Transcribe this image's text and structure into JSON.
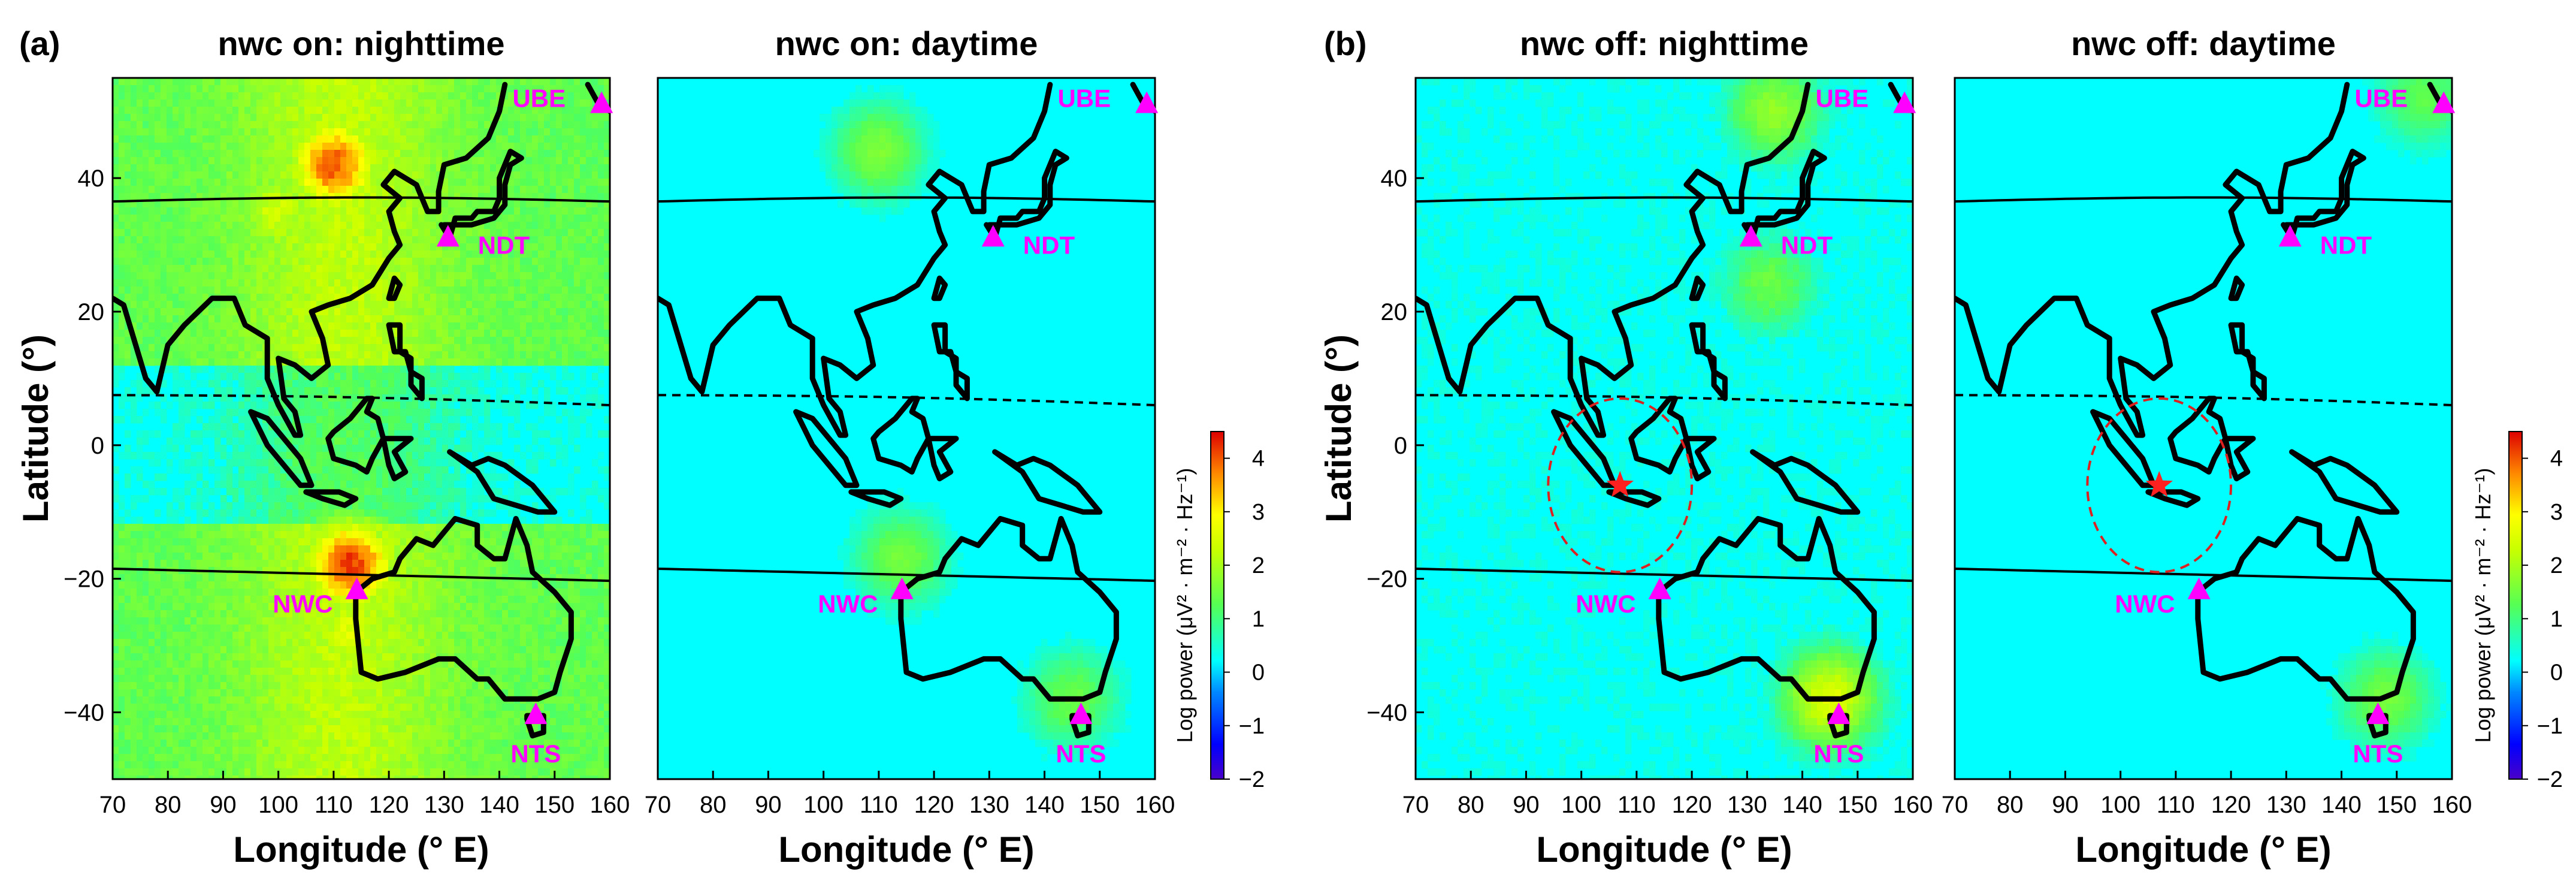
{
  "figure": {
    "part_labels": [
      "(a)",
      "(b)"
    ],
    "colormap_name": "jet",
    "ocean_color": "#00ffff",
    "coast_color": "#000000",
    "station_color": "#ff00ff",
    "nwc_star_color": "#ff2020",
    "ring_color": "#dd2020"
  },
  "chart_data": [
    {
      "type": "heatmap",
      "part": "(a)",
      "title": "nwc on: nighttime",
      "xlabel": "Longitude (° E)",
      "ylabel": "Latitude (°)",
      "xlim": [
        70,
        160
      ],
      "ylim": [
        -50,
        55
      ],
      "xticks": [
        "70",
        "80",
        "90",
        "100",
        "110",
        "120",
        "130",
        "140",
        "150",
        "160"
      ],
      "yticks": [
        "-40",
        "-20",
        "0",
        "20",
        "40"
      ],
      "show_ylabel": true,
      "nwc_transmitter_on": true,
      "intensity": 1.0,
      "hotspots": [
        {
          "lon": 110,
          "lat": 42,
          "log_power": 4.0
        },
        {
          "lon": 113,
          "lat": -18,
          "log_power": 4.2
        },
        {
          "lon": 113,
          "lat": -28,
          "log_power": 2.6
        },
        {
          "lon": 100,
          "lat": 35,
          "log_power": 2.4
        }
      ],
      "background_log_power": 1.3,
      "stations": [
        {
          "name": "UBE",
          "lon": 158.5,
          "lat": 51
        },
        {
          "name": "NDT",
          "lon": 130.7,
          "lat": 31
        },
        {
          "name": "NWC",
          "lon": 114.2,
          "lat": -21.8
        },
        {
          "name": "NTS",
          "lon": 146.6,
          "lat": -40.5
        }
      ],
      "show_star": false
    },
    {
      "type": "heatmap",
      "part": "(a)",
      "title": "nwc on: daytime",
      "xlabel": "Longitude (° E)",
      "ylabel": "",
      "xlim": [
        70,
        160
      ],
      "ylim": [
        -50,
        55
      ],
      "xticks": [
        "70",
        "80",
        "90",
        "100",
        "110",
        "120",
        "130",
        "140",
        "150",
        "160"
      ],
      "yticks": [],
      "show_ylabel": false,
      "nwc_transmitter_on": true,
      "intensity": 0.35,
      "hotspots": [
        {
          "lon": 110,
          "lat": 44,
          "log_power": 1.6
        },
        {
          "lon": 114,
          "lat": -17,
          "log_power": 1.5
        },
        {
          "lon": 145,
          "lat": -38,
          "log_power": 1.4
        }
      ],
      "background_log_power": 0.1,
      "stations": [
        {
          "name": "UBE",
          "lon": 158.5,
          "lat": 51
        },
        {
          "name": "NDT",
          "lon": 130.7,
          "lat": 31
        },
        {
          "name": "NWC",
          "lon": 114.2,
          "lat": -21.8
        },
        {
          "name": "NTS",
          "lon": 146.6,
          "lat": -40.5
        }
      ],
      "show_star": false,
      "colorbar": {
        "label": "Log power (μV² · m⁻² · Hz⁻¹)",
        "min": -2,
        "max": 4.5,
        "ticks": [
          "-2",
          "-1",
          "0",
          "1",
          "2",
          "3",
          "4"
        ]
      }
    },
    {
      "type": "heatmap",
      "part": "(b)",
      "title": "nwc off: nighttime",
      "xlabel": "Longitude (° E)",
      "ylabel": "Latitude (°)",
      "xlim": [
        70,
        160
      ],
      "ylim": [
        -50,
        55
      ],
      "xticks": [
        "70",
        "80",
        "90",
        "100",
        "110",
        "120",
        "130",
        "140",
        "150",
        "160"
      ],
      "yticks": [
        "-40",
        "-20",
        "0",
        "20",
        "40"
      ],
      "show_ylabel": true,
      "nwc_transmitter_on": false,
      "intensity": 0.55,
      "hotspots": [
        {
          "lon": 145,
          "lat": -38,
          "log_power": 2.6
        },
        {
          "lon": 135,
          "lat": 50,
          "log_power": 1.8
        },
        {
          "lon": 134,
          "lat": 24,
          "log_power": 1.4
        }
      ],
      "background_log_power": 0.3,
      "stations": [
        {
          "name": "UBE",
          "lon": 158.5,
          "lat": 51
        },
        {
          "name": "NDT",
          "lon": 130.7,
          "lat": 31
        },
        {
          "name": "NWC",
          "lon": 114.2,
          "lat": -21.8
        },
        {
          "name": "NTS",
          "lon": 146.6,
          "lat": -40.5
        }
      ],
      "show_star": true,
      "star": {
        "lon": 107,
        "lat": -6
      },
      "ring_radius_deg": 13
    },
    {
      "type": "heatmap",
      "part": "(b)",
      "title": "nwc off: daytime",
      "xlabel": "Longitude (° E)",
      "ylabel": "",
      "xlim": [
        70,
        160
      ],
      "ylim": [
        -50,
        55
      ],
      "xticks": [
        "70",
        "80",
        "90",
        "100",
        "110",
        "120",
        "130",
        "140",
        "150",
        "160"
      ],
      "yticks": [],
      "show_ylabel": false,
      "nwc_transmitter_on": false,
      "intensity": 0.3,
      "hotspots": [
        {
          "lon": 148,
          "lat": -38,
          "log_power": 1.5
        },
        {
          "lon": 155,
          "lat": 52,
          "log_power": 1.3
        }
      ],
      "background_log_power": 0.05,
      "stations": [
        {
          "name": "UBE",
          "lon": 158.5,
          "lat": 51
        },
        {
          "name": "NDT",
          "lon": 130.7,
          "lat": 31
        },
        {
          "name": "NWC",
          "lon": 114.2,
          "lat": -21.8
        },
        {
          "name": "NTS",
          "lon": 146.6,
          "lat": -40.5
        }
      ],
      "show_star": true,
      "star": {
        "lon": 107,
        "lat": -6
      },
      "ring_radius_deg": 13,
      "colorbar": {
        "label": "Log power (μV² · m⁻² · Hz⁻¹)",
        "min": -2,
        "max": 4.5,
        "ticks": [
          "-2",
          "-1",
          "0",
          "1",
          "2",
          "3",
          "4"
        ]
      }
    }
  ]
}
